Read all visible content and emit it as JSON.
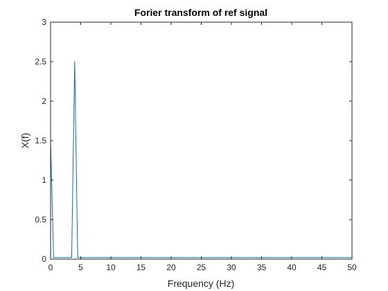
{
  "chart_data": {
    "type": "line",
    "title": "Forier transform of ref signal",
    "xlabel": "Frequency (Hz)",
    "ylabel": "X(f)",
    "xlim": [
      0,
      50
    ],
    "ylim": [
      0,
      3
    ],
    "xticks": [
      "0",
      "5",
      "10",
      "15",
      "20",
      "25",
      "30",
      "35",
      "40",
      "45",
      "50"
    ],
    "yticks": [
      "0",
      "0.5",
      "1",
      "1.5",
      "2",
      "2.5",
      "3"
    ],
    "grid": false,
    "series": [
      {
        "color": "#0072BD",
        "x": [
          0,
          0.5,
          3.5,
          4,
          4.5,
          50
        ],
        "y": [
          1.5,
          0.02,
          0.02,
          2.5,
          0.02,
          0.02
        ]
      }
    ]
  }
}
